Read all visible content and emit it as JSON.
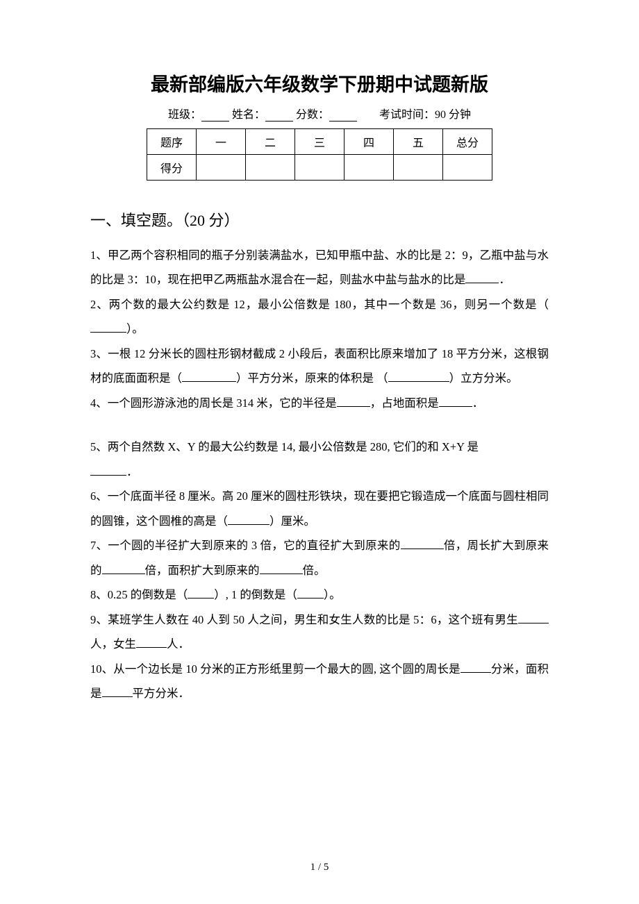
{
  "title": "最新部编版六年级数学下册期中试题新版",
  "meta": {
    "class_label": "班级：",
    "name_label": "姓名：",
    "score_label": "分数：",
    "time_label": "考试时间：90 分钟"
  },
  "score_table": {
    "header": [
      "题序",
      "一",
      "二",
      "三",
      "四",
      "五",
      "总分"
    ],
    "row_label": "得分"
  },
  "section1": {
    "heading": "一、填空题。（20 分）",
    "questions": [
      {
        "n": "1",
        "pre": "1、甲乙两个容积相同的瓶子分别装满盐水，已知甲瓶中盐、水的比是 2：9，乙瓶中盐与水的比是 3：10，现在把甲乙两瓶盐水混合在一起，则盐水中盐与盐水的比是",
        "blank_w": 48,
        "post": "．"
      },
      {
        "n": "2",
        "pre": "2、两个数的最大公约数是 12，最小公倍数是 180，其中一个数是 36，则另一个数是（",
        "blank_w": 52,
        "post": "）。"
      },
      {
        "n": "3",
        "pre": "3、一根 12 分米长的圆柱形钢材截成 2 小段后，表面积比原来增加了 18 平方分米，这根钢材的底面面积是（",
        "blank_w": 78,
        "mid": "）平方分米，原来的体积是\n（",
        "blank2_w": 88,
        "post": "）立方分米。"
      },
      {
        "n": "4",
        "pre": "4、一个圆形游泳池的周长是 314 米，它的半径是",
        "blank_w": 48,
        "mid": "，占地面积是",
        "blank2_w": 48,
        "post": "．"
      },
      {
        "n": "5",
        "pre": "5、两个自然数 X、Y 的最大公约数是 14, 最小公倍数是 280, 它们的和 X+Y 是",
        "blank_w": 52,
        "post": "．",
        "break_before_blank": true
      },
      {
        "n": "6",
        "pre": "6、一个底面半径 8 厘米。高 20 厘米的圆柱形铁块，现在要把它锻造成一个底面与圆柱相同的圆锥，这个圆椎的高是（",
        "blank_w": 60,
        "post": "）厘米。"
      },
      {
        "n": "7",
        "pre": "7、一个圆的半径扩大到原来的 3 倍，它的直径扩大到原来的",
        "blank_w": 62,
        "mid": "倍，周长扩大到原来的",
        "blank2_w": 62,
        "mid2": "倍，面积扩大到原来的",
        "blank3_w": 62,
        "post": "倍。"
      },
      {
        "n": "8",
        "pre": "8、0.25 的倒数是（",
        "blank_w": 38,
        "mid": "）, 1 的倒数是（",
        "blank2_w": 38,
        "post": "）。"
      },
      {
        "n": "9",
        "pre": "9、某班学生人数在 40 人到 50 人之间，男生和女生人数的比是 5：6，这个班有男生",
        "blank_w": 44,
        "mid": "人，女生",
        "blank2_w": 44,
        "post": "人．"
      },
      {
        "n": "10",
        "pre": "10、从一个边长是 10 分米的正方形纸里剪一个最大的圆, 这个圆的周长是",
        "blank_w": 44,
        "mid": "分米，面积是",
        "blank2_w": 44,
        "post": "平方分米．"
      }
    ]
  },
  "page_number": "1 / 5"
}
